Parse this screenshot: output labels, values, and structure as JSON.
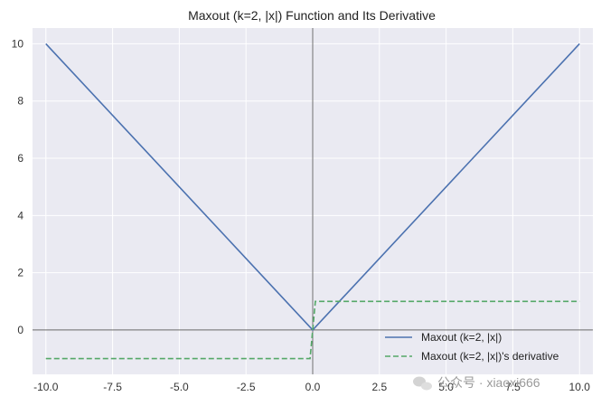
{
  "chart_data": {
    "type": "line",
    "title": "Maxout (k=2, |x|) Function and Its Derivative",
    "xlabel": "",
    "ylabel": "",
    "xlim": [
      -10.5,
      10.5
    ],
    "ylim": [
      -1.55,
      10.55
    ],
    "xticks": [
      -10.0,
      -7.5,
      -5.0,
      -2.5,
      0.0,
      2.5,
      5.0,
      7.5,
      10.0
    ],
    "xtick_labels": [
      "-10.0",
      "-7.5",
      "-5.0",
      "-2.5",
      "0.0",
      "2.5",
      "5.0",
      "7.5",
      "10.0"
    ],
    "yticks": [
      0,
      2,
      4,
      6,
      8,
      10
    ],
    "ytick_labels": [
      "0",
      "2",
      "4",
      "6",
      "8",
      "10"
    ],
    "grid": true,
    "legend_position": "bottom-right",
    "reference_lines": {
      "x": 0,
      "y": 0
    },
    "series": [
      {
        "name": "Maxout (k=2, |x|)",
        "style": "solid",
        "color": "#4c72b0",
        "x": [
          -10,
          0,
          10
        ],
        "y": [
          10,
          0,
          10
        ]
      },
      {
        "name": "Maxout (k=2, |x|)'s derivative",
        "style": "dashed",
        "color": "#55a868",
        "x": [
          -10,
          -0.1,
          0.1,
          10
        ],
        "y": [
          -1,
          -1,
          1,
          1
        ]
      }
    ]
  },
  "watermark": {
    "text": "公众号 · xiaoxi666",
    "icon": "wechat-icon"
  }
}
